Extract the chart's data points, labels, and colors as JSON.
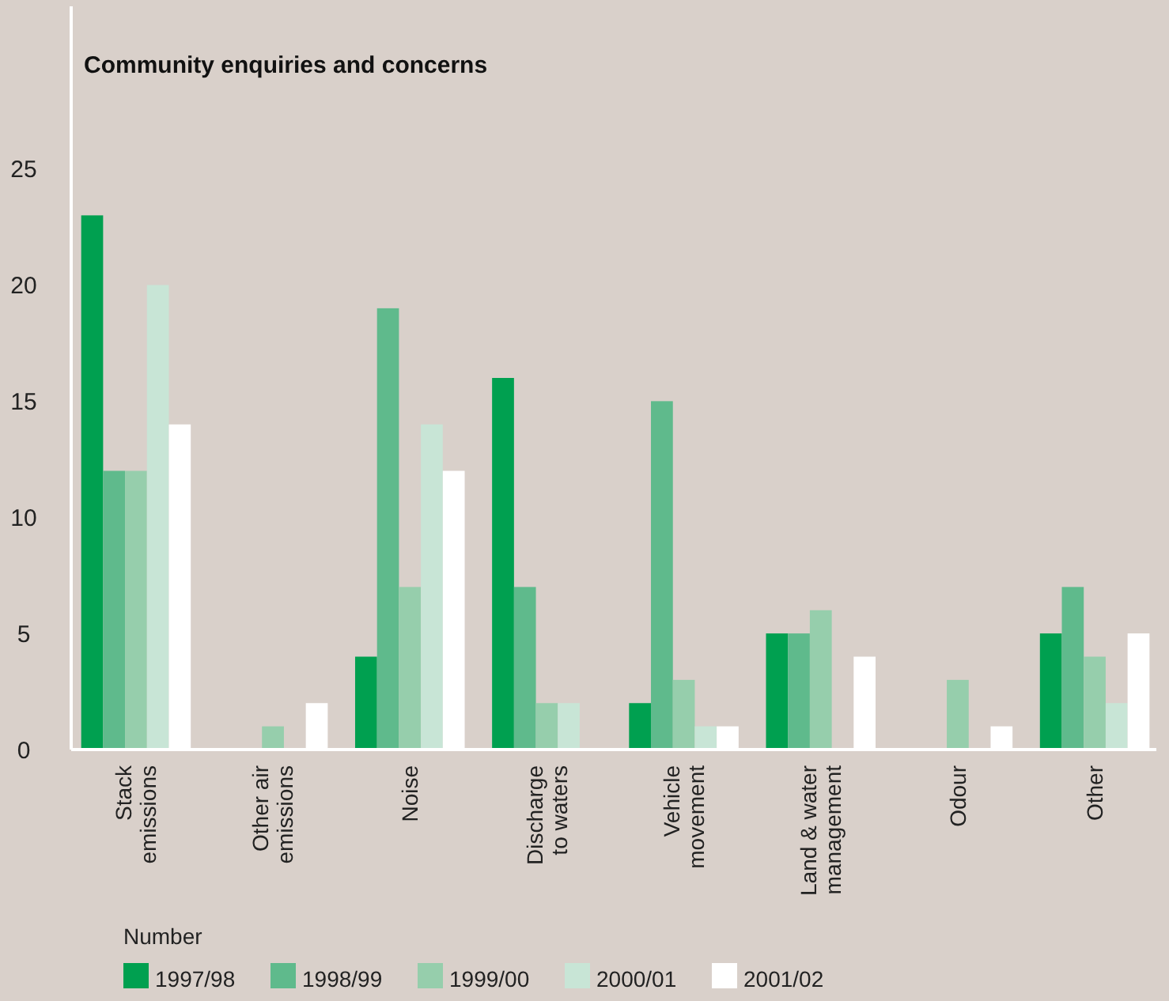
{
  "chart_data": {
    "type": "bar",
    "title": "Community enquiries and concerns",
    "legend_title": "Number",
    "categories": [
      "Stack\nemissions",
      "Other air\nemissions",
      "Noise",
      "Discharge\nto waters",
      "Vehicle\nmovement",
      "Land & water\nmanagement",
      "Odour",
      "Other"
    ],
    "series": [
      {
        "name": "1997/98",
        "color": "#00a050",
        "values": [
          23,
          0,
          4,
          16,
          2,
          5,
          0,
          5
        ]
      },
      {
        "name": "1998/99",
        "color": "#5fba8c",
        "values": [
          12,
          0,
          19,
          7,
          15,
          5,
          0,
          7
        ]
      },
      {
        "name": "1999/00",
        "color": "#96ceac",
        "values": [
          12,
          1,
          7,
          2,
          3,
          6,
          3,
          4
        ]
      },
      {
        "name": "2000/01",
        "color": "#c8e5d6",
        "values": [
          20,
          0,
          14,
          2,
          1,
          0,
          0,
          2
        ]
      },
      {
        "name": "2001/02",
        "color": "#ffffff",
        "values": [
          14,
          2,
          12,
          0,
          1,
          4,
          1,
          5
        ]
      }
    ],
    "ylim": [
      0,
      32
    ],
    "yticks": [
      0,
      5,
      10,
      15,
      20,
      25
    ],
    "grid": false,
    "legend": "bottom"
  }
}
